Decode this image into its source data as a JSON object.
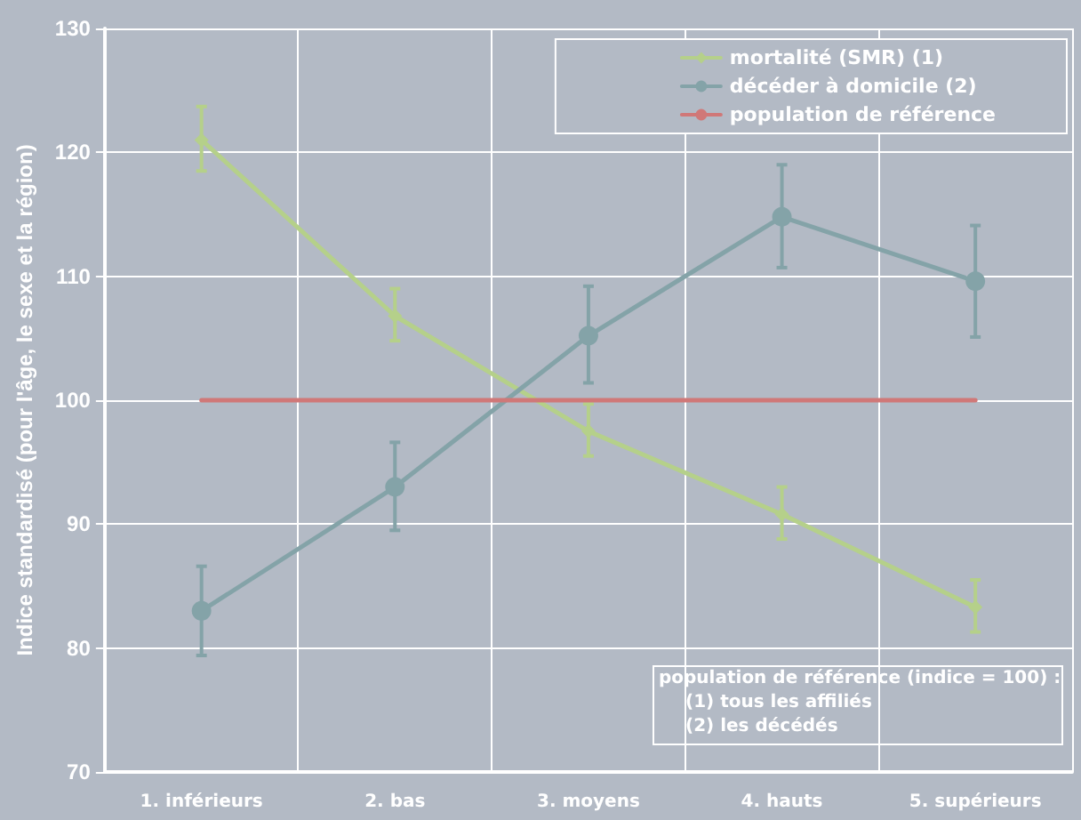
{
  "chart_data": {
    "type": "line",
    "ylabel": "Indice standardisé (pour l'âge, le sexe et la région)",
    "categories": [
      "1. inférieurs",
      "2. bas",
      "3. moyens",
      "4. hauts",
      "5. supérieurs"
    ],
    "series": [
      {
        "name": "mortalité (SMR) (1)",
        "color": "#b5d08a",
        "marker": "diamond",
        "values": [
          121,
          106.8,
          97.5,
          90.8,
          83.3
        ],
        "errors": [
          [
            118.5,
            123.7
          ],
          [
            104.8,
            109
          ],
          [
            95.5,
            99.7
          ],
          [
            88.8,
            93
          ],
          [
            81.3,
            85.5
          ]
        ]
      },
      {
        "name": "décéder à domicile (2)",
        "color": "#84a3a8",
        "marker": "circle",
        "values": [
          83,
          93,
          105.2,
          114.8,
          109.6
        ],
        "errors": [
          [
            79.4,
            86.6
          ],
          [
            89.5,
            96.6
          ],
          [
            101.4,
            109.2
          ],
          [
            110.7,
            119
          ],
          [
            105.1,
            114.1
          ]
        ]
      },
      {
        "name": "population de référence",
        "color": "#d07878",
        "marker": "none",
        "values": [
          100,
          100,
          100,
          100,
          100
        ]
      }
    ],
    "ylim": [
      70,
      130
    ],
    "yticks": [
      70,
      80,
      90,
      100,
      110,
      120,
      130
    ],
    "grid": true,
    "legend": "top right",
    "annotations": [
      "population de référence (indice = 100) :",
      "(1) tous les affiliés",
      "(2) les décédés"
    ]
  }
}
